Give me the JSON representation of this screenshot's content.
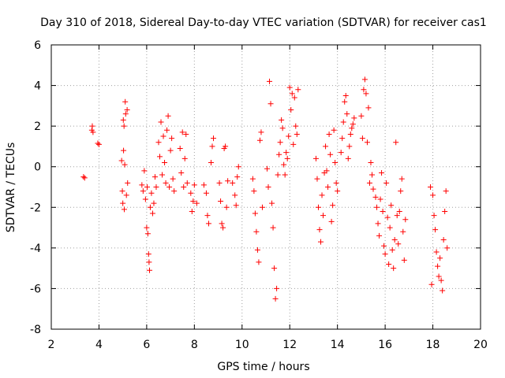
{
  "chart_data": {
    "type": "scatter",
    "title": "Day 310 of 2018, Sidereal Day-to-day VTEC variation (SDTVAR) for receiver cas1",
    "xlabel": "GPS time / hours",
    "ylabel": "SDTVAR / TECUs",
    "xlim": [
      2,
      20
    ],
    "ylim": [
      -8,
      6
    ],
    "x_ticks": [
      2,
      4,
      6,
      8,
      10,
      12,
      14,
      16,
      18,
      20
    ],
    "x_tick_labels": [
      "2",
      "4",
      "6",
      "8",
      "10",
      "12",
      "14",
      "16",
      "18",
      "20"
    ],
    "y_ticks": [
      -8,
      -6,
      -4,
      -2,
      0,
      2,
      4,
      6
    ],
    "y_tick_labels": [
      "-8",
      "-6",
      "-4",
      "-2",
      "0",
      "2",
      "4",
      "6"
    ],
    "grid": true,
    "marker": "+",
    "series": [
      {
        "name": "SDTVAR",
        "color": "#ff0000",
        "points": [
          [
            3.35,
            -0.5
          ],
          [
            3.4,
            -0.55
          ],
          [
            3.7,
            1.8
          ],
          [
            3.72,
            2.0
          ],
          [
            3.75,
            1.7
          ],
          [
            3.95,
            1.15
          ],
          [
            4.0,
            1.1
          ],
          [
            4.95,
            0.3
          ],
          [
            4.98,
            -1.2
          ],
          [
            5.0,
            -1.8
          ],
          [
            5.02,
            2.3
          ],
          [
            5.03,
            0.8
          ],
          [
            5.05,
            2.0
          ],
          [
            5.06,
            -2.1
          ],
          [
            5.08,
            0.1
          ],
          [
            5.1,
            3.2
          ],
          [
            5.12,
            2.6
          ],
          [
            5.15,
            -1.4
          ],
          [
            5.18,
            2.8
          ],
          [
            5.2,
            -0.8
          ],
          [
            5.8,
            -0.9
          ],
          [
            5.85,
            -1.2
          ],
          [
            5.9,
            -0.2
          ],
          [
            5.95,
            -1.6
          ],
          [
            6.0,
            -3.0
          ],
          [
            6.02,
            -1.0
          ],
          [
            6.05,
            -3.3
          ],
          [
            6.08,
            -4.3
          ],
          [
            6.1,
            -4.7
          ],
          [
            6.12,
            -5.1
          ],
          [
            6.15,
            -2.0
          ],
          [
            6.2,
            -1.3
          ],
          [
            6.25,
            -2.3
          ],
          [
            6.3,
            -1.8
          ],
          [
            6.35,
            -0.5
          ],
          [
            6.4,
            -1.0
          ],
          [
            6.5,
            1.2
          ],
          [
            6.55,
            0.5
          ],
          [
            6.6,
            2.2
          ],
          [
            6.65,
            -0.4
          ],
          [
            6.7,
            1.5
          ],
          [
            6.75,
            0.2
          ],
          [
            6.8,
            -0.8
          ],
          [
            6.85,
            1.8
          ],
          [
            6.9,
            2.5
          ],
          [
            6.95,
            -1.0
          ],
          [
            7.0,
            0.8
          ],
          [
            7.05,
            1.4
          ],
          [
            7.1,
            -0.6
          ],
          [
            7.15,
            -1.2
          ],
          [
            7.4,
            0.9
          ],
          [
            7.45,
            -0.3
          ],
          [
            7.5,
            1.7
          ],
          [
            7.55,
            -1.0
          ],
          [
            7.6,
            0.4
          ],
          [
            7.65,
            1.6
          ],
          [
            7.7,
            -0.8
          ],
          [
            7.85,
            -1.3
          ],
          [
            7.9,
            -2.2
          ],
          [
            7.95,
            -1.7
          ],
          [
            8.0,
            -0.9
          ],
          [
            8.1,
            -1.8
          ],
          [
            8.4,
            -0.9
          ],
          [
            8.5,
            -1.3
          ],
          [
            8.55,
            -2.4
          ],
          [
            8.6,
            -2.8
          ],
          [
            8.7,
            0.2
          ],
          [
            8.75,
            1.0
          ],
          [
            8.8,
            1.4
          ],
          [
            9.05,
            -0.8
          ],
          [
            9.1,
            -1.7
          ],
          [
            9.15,
            -2.8
          ],
          [
            9.2,
            -3.0
          ],
          [
            9.25,
            0.9
          ],
          [
            9.3,
            1.0
          ],
          [
            9.35,
            -2.0
          ],
          [
            9.4,
            -0.7
          ],
          [
            9.6,
            -0.8
          ],
          [
            9.7,
            -1.4
          ],
          [
            9.75,
            -1.9
          ],
          [
            9.8,
            -0.5
          ],
          [
            9.85,
            0.0
          ],
          [
            10.45,
            -0.6
          ],
          [
            10.5,
            -1.2
          ],
          [
            10.55,
            -2.3
          ],
          [
            10.6,
            -3.2
          ],
          [
            10.65,
            -4.1
          ],
          [
            10.7,
            -4.7
          ],
          [
            10.75,
            1.3
          ],
          [
            10.8,
            1.7
          ],
          [
            10.85,
            -2.0
          ],
          [
            11.05,
            -0.1
          ],
          [
            11.1,
            -1.0
          ],
          [
            11.15,
            4.2
          ],
          [
            11.2,
            3.1
          ],
          [
            11.25,
            -1.8
          ],
          [
            11.3,
            -3.0
          ],
          [
            11.35,
            -5.0
          ],
          [
            11.4,
            -6.5
          ],
          [
            11.45,
            -6.0
          ],
          [
            11.5,
            -0.4
          ],
          [
            11.55,
            0.6
          ],
          [
            11.6,
            1.2
          ],
          [
            11.65,
            2.3
          ],
          [
            11.7,
            1.9
          ],
          [
            11.75,
            0.1
          ],
          [
            11.8,
            -0.4
          ],
          [
            11.85,
            0.7
          ],
          [
            11.9,
            0.4
          ],
          [
            11.95,
            1.5
          ],
          [
            12.0,
            3.9
          ],
          [
            12.05,
            2.8
          ],
          [
            12.1,
            3.6
          ],
          [
            12.15,
            1.1
          ],
          [
            12.2,
            3.4
          ],
          [
            12.25,
            2.0
          ],
          [
            12.3,
            1.6
          ],
          [
            12.35,
            3.8
          ],
          [
            13.1,
            0.4
          ],
          [
            13.15,
            -0.6
          ],
          [
            13.2,
            -2.0
          ],
          [
            13.25,
            -3.1
          ],
          [
            13.3,
            -3.7
          ],
          [
            13.35,
            -1.4
          ],
          [
            13.4,
            -2.4
          ],
          [
            13.45,
            -0.3
          ],
          [
            13.5,
            1.0
          ],
          [
            13.55,
            -0.2
          ],
          [
            13.6,
            -1.0
          ],
          [
            13.65,
            1.6
          ],
          [
            13.7,
            0.6
          ],
          [
            13.75,
            -2.7
          ],
          [
            13.8,
            -1.9
          ],
          [
            13.85,
            1.8
          ],
          [
            13.9,
            0.2
          ],
          [
            13.95,
            -0.8
          ],
          [
            14.0,
            -1.2
          ],
          [
            14.15,
            0.7
          ],
          [
            14.2,
            1.4
          ],
          [
            14.25,
            2.2
          ],
          [
            14.3,
            3.2
          ],
          [
            14.35,
            3.5
          ],
          [
            14.4,
            2.6
          ],
          [
            14.45,
            0.4
          ],
          [
            14.5,
            1.0
          ],
          [
            14.55,
            1.6
          ],
          [
            14.6,
            1.9
          ],
          [
            14.65,
            2.1
          ],
          [
            14.7,
            2.4
          ],
          [
            15.0,
            2.5
          ],
          [
            15.05,
            1.4
          ],
          [
            15.1,
            3.8
          ],
          [
            15.15,
            4.3
          ],
          [
            15.2,
            3.6
          ],
          [
            15.25,
            1.2
          ],
          [
            15.3,
            2.9
          ],
          [
            15.35,
            -0.8
          ],
          [
            15.4,
            0.2
          ],
          [
            15.45,
            -0.4
          ],
          [
            15.5,
            -1.1
          ],
          [
            15.6,
            -1.5
          ],
          [
            15.65,
            -2.0
          ],
          [
            15.7,
            -2.8
          ],
          [
            15.75,
            -3.4
          ],
          [
            15.8,
            -1.6
          ],
          [
            15.85,
            -0.3
          ],
          [
            15.9,
            -2.2
          ],
          [
            15.95,
            -3.9
          ],
          [
            16.0,
            -4.3
          ],
          [
            16.05,
            -0.8
          ],
          [
            16.1,
            -2.5
          ],
          [
            16.15,
            -4.8
          ],
          [
            16.2,
            -3.0
          ],
          [
            16.25,
            -1.9
          ],
          [
            16.3,
            -4.1
          ],
          [
            16.35,
            -5.0
          ],
          [
            16.4,
            -3.6
          ],
          [
            16.45,
            1.2
          ],
          [
            16.5,
            -2.4
          ],
          [
            16.55,
            -3.8
          ],
          [
            16.6,
            -2.2
          ],
          [
            16.65,
            -1.2
          ],
          [
            16.7,
            -0.6
          ],
          [
            16.75,
            -3.2
          ],
          [
            16.8,
            -4.6
          ],
          [
            16.85,
            -2.6
          ],
          [
            17.9,
            -1.0
          ],
          [
            17.95,
            -5.8
          ],
          [
            18.0,
            -1.4
          ],
          [
            18.05,
            -2.4
          ],
          [
            18.1,
            -3.1
          ],
          [
            18.15,
            -4.2
          ],
          [
            18.2,
            -4.9
          ],
          [
            18.25,
            -5.4
          ],
          [
            18.3,
            -4.5
          ],
          [
            18.35,
            -5.6
          ],
          [
            18.4,
            -6.1
          ],
          [
            18.45,
            -3.6
          ],
          [
            18.5,
            -2.2
          ],
          [
            18.55,
            -1.2
          ],
          [
            18.6,
            -4.0
          ]
        ]
      }
    ]
  }
}
